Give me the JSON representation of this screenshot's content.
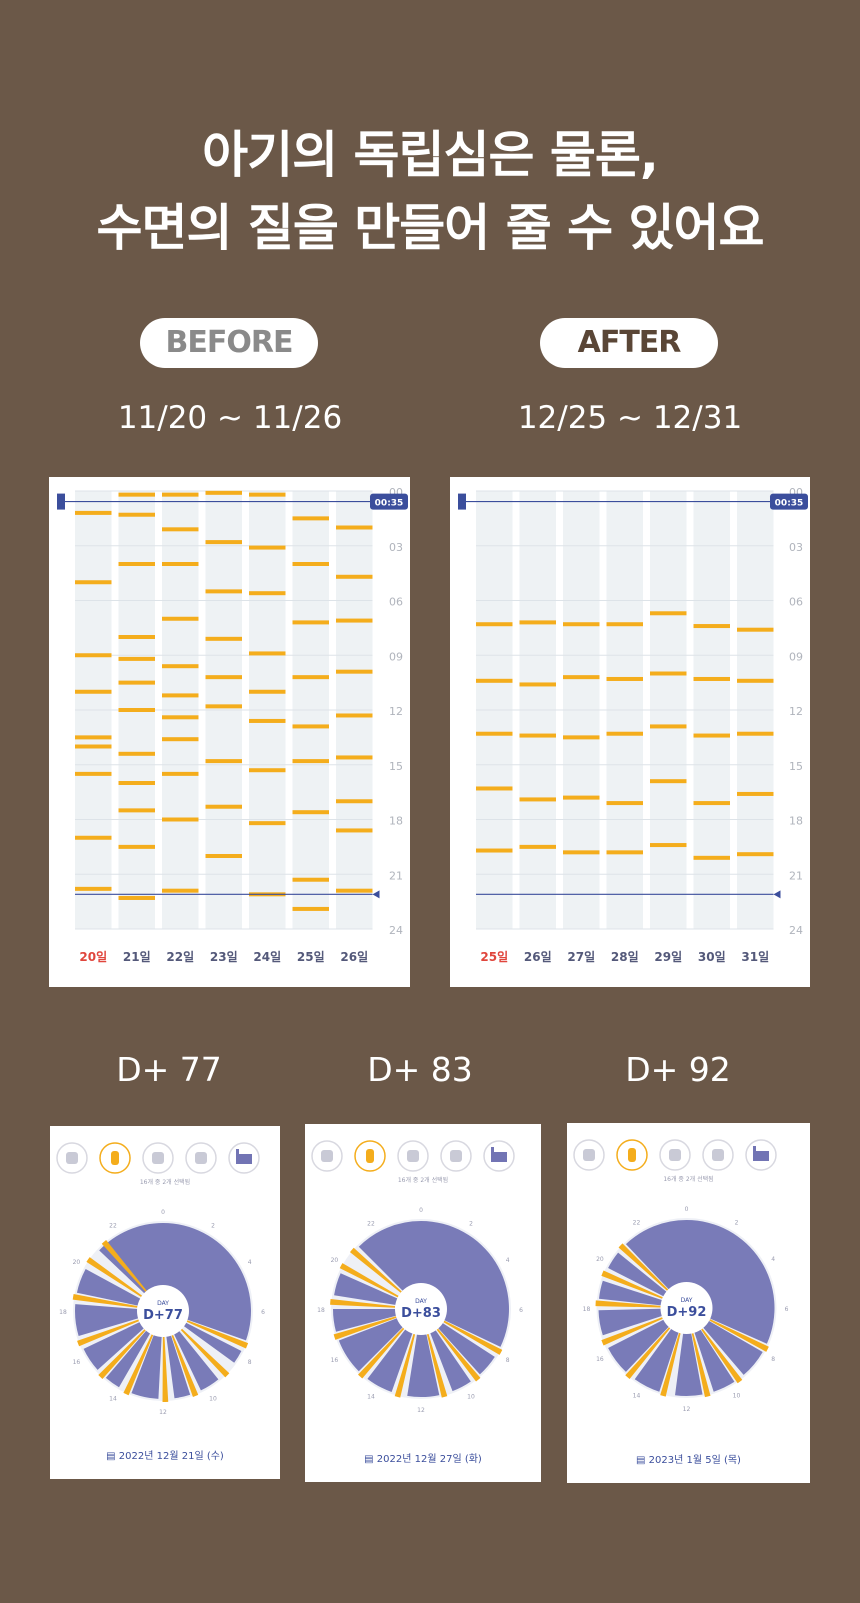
{
  "headline": {
    "line1": "아기의 독립심은 물론,",
    "line2": "수면의 질을 만들어 줄 수 있어요"
  },
  "before": {
    "pill": "BEFORE",
    "range": "11/20 ~ 11/26",
    "now_label": "00:35",
    "hours": [
      "00",
      "03",
      "06",
      "09",
      "12",
      "15",
      "18",
      "21",
      "24"
    ],
    "days": [
      "20일",
      "21일",
      "22일",
      "23일",
      "24일",
      "25일",
      "26일"
    ],
    "day_colors": [
      "#e0463d",
      "#54597a",
      "#54597a",
      "#54597a",
      "#54597a",
      "#54597a",
      "#54597a"
    ],
    "feeds": [
      [
        1.2,
        5.0,
        9.0,
        11.0,
        13.5,
        14.0,
        15.5,
        19.0,
        21.8
      ],
      [
        0.2,
        1.3,
        4.0,
        8.0,
        9.2,
        10.5,
        12.0,
        14.4,
        16.0,
        17.5,
        19.5,
        22.3
      ],
      [
        0.2,
        2.1,
        4.0,
        7.0,
        9.6,
        11.2,
        12.4,
        13.6,
        15.5,
        18.0,
        21.9
      ],
      [
        0.1,
        2.8,
        5.5,
        8.1,
        10.2,
        11.8,
        14.8,
        17.3,
        20.0
      ],
      [
        0.2,
        3.1,
        5.6,
        8.9,
        11.0,
        12.6,
        15.3,
        18.2,
        22.1
      ],
      [
        1.5,
        4.0,
        7.2,
        10.2,
        12.9,
        14.8,
        17.6,
        21.3,
        22.9
      ],
      [
        2.0,
        4.7,
        7.1,
        9.9,
        12.3,
        14.6,
        17.0,
        18.6,
        21.9
      ]
    ]
  },
  "after": {
    "pill": "AFTER",
    "range": "12/25 ~ 12/31",
    "now_label": "00:35",
    "hours": [
      "00",
      "03",
      "06",
      "09",
      "12",
      "15",
      "18",
      "21",
      "24"
    ],
    "days": [
      "25일",
      "26일",
      "27일",
      "28일",
      "29일",
      "30일",
      "31일"
    ],
    "day_colors": [
      "#e0463d",
      "#54597a",
      "#54597a",
      "#54597a",
      "#54597a",
      "#54597a",
      "#54597a"
    ],
    "feeds": [
      [
        7.3,
        10.4,
        13.3,
        16.3,
        19.7
      ],
      [
        7.2,
        10.6,
        13.4,
        16.9,
        19.5
      ],
      [
        7.3,
        10.2,
        13.5,
        16.8,
        19.8
      ],
      [
        7.3,
        10.3,
        13.3,
        17.1,
        19.8
      ],
      [
        6.7,
        10.0,
        12.9,
        15.9,
        19.4
      ],
      [
        7.4,
        10.3,
        13.4,
        17.1,
        20.1
      ],
      [
        7.6,
        10.4,
        13.3,
        16.6,
        19.9
      ]
    ]
  },
  "days_row": [
    {
      "label": "D+ 77",
      "center_top": "DAY",
      "center": "D+77",
      "date": "2022년 12월 21일 (수)",
      "caption": "16개 중 2개 선택됨",
      "sleep_blocks": [
        [
          0,
          7.3
        ],
        [
          7.8,
          8.4
        ],
        [
          9.4,
          10.3
        ],
        [
          10.8,
          11.5
        ],
        [
          12.2,
          13.4
        ],
        [
          14.0,
          14.7
        ],
        [
          15.2,
          16.3
        ],
        [
          16.9,
          18.3
        ],
        [
          18.8,
          19.9
        ],
        [
          20.9,
          24
        ]
      ],
      "feed_times": [
        7.5,
        9.0,
        10.6,
        11.9,
        13.6,
        14.9,
        16.6,
        18.6,
        20.3,
        21.3
      ]
    },
    {
      "label": "D+ 83",
      "center_top": "DAY",
      "center": "D+83",
      "date": "2022년 12월 27일 (화)",
      "caption": "16개 중 2개 선택됨",
      "sleep_blocks": [
        [
          0,
          7.7
        ],
        [
          8.2,
          9.2
        ],
        [
          9.7,
          10.6
        ],
        [
          11.2,
          12.6
        ],
        [
          13.3,
          14.5
        ],
        [
          15.0,
          16.6
        ],
        [
          17.0,
          18.0
        ],
        [
          18.6,
          19.6
        ],
        [
          21.0,
          24
        ]
      ],
      "feed_times": [
        7.9,
        9.4,
        11.0,
        13.0,
        14.8,
        16.8,
        18.3,
        19.9,
        20.7
      ]
    },
    {
      "label": "D+ 92",
      "center_top": "DAY",
      "center": "D+92",
      "date": "2023년 1월 5일 (목)",
      "caption": "16개 중 2개 선택됨",
      "sleep_blocks": [
        [
          0,
          7.6
        ],
        [
          8.0,
          9.3
        ],
        [
          9.8,
          10.8
        ],
        [
          11.3,
          12.5
        ],
        [
          13.2,
          14.4
        ],
        [
          14.9,
          16.2
        ],
        [
          16.8,
          17.9
        ],
        [
          18.4,
          19.2
        ],
        [
          19.8,
          20.6
        ],
        [
          21.1,
          24
        ]
      ],
      "feed_times": [
        7.8,
        9.6,
        11.1,
        13.0,
        14.7,
        16.5,
        18.2,
        19.5,
        20.9
      ]
    }
  ],
  "clock_hours": [
    "0",
    "2",
    "4",
    "6",
    "8",
    "10",
    "12",
    "14",
    "16",
    "18",
    "20",
    "22"
  ],
  "colors": {
    "background": "#6b5848",
    "feed": "#f4ad1c",
    "sleep": "#7274b4",
    "now_line": "#3b4e9c",
    "column": "#eef2f4"
  },
  "icons": [
    "baby-icon",
    "bottle-icon",
    "food-jar-icon",
    "diaper-icon",
    "factory-icon"
  ]
}
